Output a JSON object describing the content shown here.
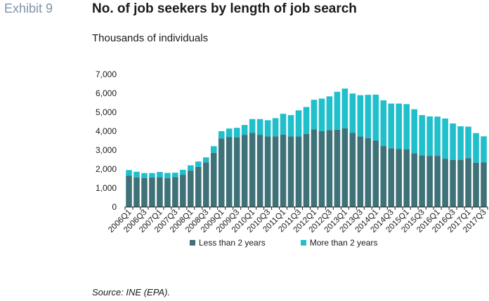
{
  "header": {
    "exhibit": "Exhibit 9",
    "title": "No. of job seekers by length of job search",
    "subtitle": "Thousands of individuals"
  },
  "footer": {
    "source": "Source: INE (EPA)."
  },
  "colors": {
    "less": "#3f7278",
    "more": "#1fbfcc",
    "axis": "#1b1b1b"
  },
  "chart_data": {
    "type": "bar",
    "stacked": true,
    "categories": [
      "2006Q1",
      "2006Q2",
      "2006Q3",
      "2006Q4",
      "2007Q1",
      "2007Q2",
      "2007Q3",
      "2007Q4",
      "2008Q1",
      "2008Q2",
      "2008Q3",
      "2008Q4",
      "2009Q1",
      "2009Q2",
      "2009Q3",
      "2009Q4",
      "2010Q1",
      "2010Q2",
      "2010Q3",
      "2010Q4",
      "2011Q1",
      "2011Q2",
      "2011Q3",
      "2011Q4",
      "2012Q1",
      "2012Q2",
      "2012Q3",
      "2012Q4",
      "2013Q1",
      "2013Q2",
      "2013Q3",
      "2013Q4",
      "2014Q1",
      "2014Q2",
      "2014Q3",
      "2014Q4",
      "2015Q1",
      "2015Q2",
      "2015Q3",
      "2015Q4",
      "2016Q1",
      "2016Q2",
      "2016Q3",
      "2016Q4",
      "2017Q1",
      "2017Q2",
      "2017Q3"
    ],
    "tick_labels": [
      "2006Q1",
      "",
      "2006Q3",
      "",
      "2007Q1",
      "",
      "2007Q3",
      "",
      "2008Q1",
      "",
      "2008Q3",
      "",
      "2009Q1",
      "",
      "2009Q3",
      "",
      "2010Q1",
      "",
      "2010Q3",
      "",
      "2011Q1",
      "",
      "2011Q3",
      "",
      "2012Q1",
      "",
      "2012Q3",
      "",
      "2013Q1",
      "",
      "2013Q3",
      "",
      "2014Q1",
      "",
      "2014Q3",
      "",
      "2015Q1",
      "",
      "2015Q3",
      "",
      "2016Q1",
      "",
      "2016Q3",
      "",
      "2017Q1",
      "",
      "2017Q3"
    ],
    "series": [
      {
        "name": "Less than 2 years",
        "values": [
          1650,
          1560,
          1520,
          1560,
          1570,
          1530,
          1580,
          1700,
          1920,
          2120,
          2360,
          2860,
          3620,
          3700,
          3680,
          3810,
          3920,
          3810,
          3720,
          3730,
          3820,
          3720,
          3720,
          3860,
          4100,
          4000,
          4060,
          4080,
          4150,
          3920,
          3730,
          3640,
          3500,
          3220,
          3100,
          3070,
          3050,
          2840,
          2730,
          2700,
          2700,
          2550,
          2490,
          2480,
          2580,
          2340,
          2350
        ]
      },
      {
        "name": "More than 2 years",
        "values": [
          300,
          300,
          270,
          230,
          280,
          270,
          230,
          260,
          280,
          280,
          260,
          350,
          380,
          440,
          500,
          520,
          720,
          830,
          860,
          960,
          1100,
          1130,
          1380,
          1420,
          1560,
          1720,
          1780,
          2000,
          2100,
          2070,
          2170,
          2280,
          2430,
          2410,
          2360,
          2390,
          2380,
          2320,
          2120,
          2080,
          2070,
          2120,
          1920,
          1780,
          1660,
          1560,
          1380
        ]
      }
    ],
    "ylim": [
      0,
      7000
    ],
    "yticks": [
      0,
      1000,
      2000,
      3000,
      4000,
      5000,
      6000,
      7000
    ],
    "ytick_labels": [
      "0",
      "1,000",
      "2,000",
      "3,000",
      "4,000",
      "5,000",
      "6,000",
      "7,000"
    ],
    "xlabel": "",
    "ylabel": "",
    "grid": false,
    "legend": "bottom"
  }
}
